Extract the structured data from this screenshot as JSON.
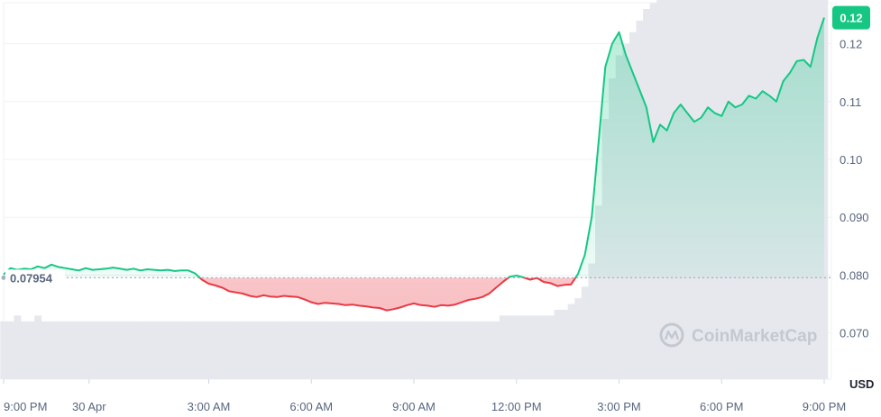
{
  "chart_data": {
    "type": "area",
    "y_axis_position": "right",
    "ylim": [
      0.062,
      0.126
    ],
    "y_ticks": [
      {
        "value": 0.12,
        "label": "0.12"
      },
      {
        "value": 0.11,
        "label": "0.11"
      },
      {
        "value": 0.1,
        "label": "0.10"
      },
      {
        "value": 0.09,
        "label": "0.090"
      },
      {
        "value": 0.08,
        "label": "0.080"
      },
      {
        "value": 0.07,
        "label": "0.070"
      }
    ],
    "x_range_hours": [
      0,
      24
    ],
    "x_ticks": [
      {
        "hour": 0,
        "label": "9:00 PM"
      },
      {
        "hour": 2.5,
        "label": "30 Apr"
      },
      {
        "hour": 6,
        "label": "3:00 AM"
      },
      {
        "hour": 9,
        "label": "6:00 AM"
      },
      {
        "hour": 12,
        "label": "9:00 AM"
      },
      {
        "hour": 15,
        "label": "12:00 PM"
      },
      {
        "hour": 18,
        "label": "3:00 PM"
      },
      {
        "hour": 21,
        "label": "6:00 PM"
      },
      {
        "hour": 24,
        "label": "9:00 PM"
      }
    ],
    "currency_label": "USD",
    "reference_price": 0.07954,
    "reference_label": "0.07954",
    "last_price_label": "0.12",
    "grid": true,
    "colors": {
      "up": "#16c784",
      "down": "#ea3943",
      "badge": "#16c784",
      "volume": "#e6e8ee"
    },
    "series": [
      {
        "x": [
          0,
          0.2,
          0.4,
          0.6,
          0.8,
          1.0,
          1.2,
          1.4,
          1.6,
          1.8,
          2.0,
          2.2,
          2.4,
          2.6,
          2.8,
          3.0,
          3.2,
          3.4,
          3.6,
          3.8,
          4.0,
          4.2,
          4.4,
          4.6,
          4.8,
          5.0,
          5.2,
          5.4,
          5.6,
          5.8,
          6.0,
          6.2,
          6.4,
          6.6,
          6.8,
          7.0,
          7.2,
          7.4,
          7.6,
          7.8,
          8.0,
          8.2,
          8.4,
          8.6,
          8.8,
          9.0,
          9.2,
          9.4,
          9.6,
          9.8,
          10.0,
          10.2,
          10.4,
          10.6,
          10.8,
          11.0,
          11.2,
          11.4,
          11.6,
          11.8,
          12.0,
          12.2,
          12.4,
          12.6,
          12.8,
          13.0,
          13.2,
          13.4,
          13.6,
          13.8,
          14.0,
          14.2,
          14.4,
          14.6,
          14.8,
          15.0,
          15.2,
          15.4,
          15.6,
          15.8,
          16.0,
          16.2,
          16.4,
          16.6,
          16.8,
          17.0,
          17.2,
          17.4,
          17.6,
          17.8,
          18.0,
          18.2,
          18.4,
          18.6,
          18.8,
          19.0,
          19.2,
          19.4,
          19.6,
          19.8,
          20.0,
          20.2,
          20.4,
          20.6,
          20.8,
          21.0,
          21.2,
          21.4,
          21.6,
          21.8,
          22.0,
          22.2,
          22.4,
          22.6,
          22.8,
          23.0,
          23.2,
          23.4,
          23.6,
          23.8,
          24.0
        ],
        "y": [
          0.0801,
          0.0812,
          0.0809,
          0.0811,
          0.081,
          0.0815,
          0.0812,
          0.0818,
          0.0814,
          0.0812,
          0.081,
          0.0808,
          0.0812,
          0.0809,
          0.081,
          0.0811,
          0.0813,
          0.0811,
          0.0809,
          0.0811,
          0.0808,
          0.081,
          0.0809,
          0.0808,
          0.0809,
          0.0807,
          0.0808,
          0.0808,
          0.0803,
          0.0792,
          0.0785,
          0.0782,
          0.0778,
          0.0772,
          0.077,
          0.0768,
          0.0764,
          0.0762,
          0.0765,
          0.0763,
          0.0762,
          0.0764,
          0.0763,
          0.0762,
          0.0758,
          0.0753,
          0.075,
          0.0752,
          0.0751,
          0.075,
          0.0748,
          0.0749,
          0.0747,
          0.0746,
          0.0744,
          0.0743,
          0.0739,
          0.0741,
          0.0744,
          0.0748,
          0.0751,
          0.0748,
          0.0747,
          0.0745,
          0.0748,
          0.0747,
          0.0749,
          0.0753,
          0.0757,
          0.0759,
          0.0762,
          0.0768,
          0.0778,
          0.0788,
          0.0797,
          0.0799,
          0.0796,
          0.0792,
          0.0795,
          0.0788,
          0.0786,
          0.0781,
          0.0783,
          0.0784,
          0.0802,
          0.0835,
          0.09,
          0.103,
          0.116,
          0.12,
          0.122,
          0.118,
          0.115,
          0.112,
          0.109,
          0.103,
          0.106,
          0.105,
          0.108,
          0.1095,
          0.108,
          0.1065,
          0.1072,
          0.109,
          0.108,
          0.1075,
          0.11,
          0.109,
          0.1095,
          0.111,
          0.1105,
          0.1118,
          0.111,
          0.11,
          0.1135,
          0.115,
          0.117,
          0.1172,
          0.116,
          0.121,
          0.1245
        ],
        "volume": [
          0.01,
          0.01,
          0.011,
          0.01,
          0.01,
          0.011,
          0.01,
          0.01,
          0.01,
          0.01,
          0.01,
          0.01,
          0.01,
          0.01,
          0.01,
          0.01,
          0.01,
          0.01,
          0.01,
          0.01,
          0.01,
          0.01,
          0.01,
          0.01,
          0.01,
          0.01,
          0.01,
          0.01,
          0.01,
          0.01,
          0.01,
          0.01,
          0.01,
          0.01,
          0.01,
          0.01,
          0.01,
          0.01,
          0.01,
          0.01,
          0.01,
          0.01,
          0.01,
          0.01,
          0.01,
          0.01,
          0.01,
          0.01,
          0.01,
          0.01,
          0.01,
          0.01,
          0.01,
          0.01,
          0.01,
          0.01,
          0.01,
          0.01,
          0.01,
          0.01,
          0.01,
          0.01,
          0.01,
          0.01,
          0.01,
          0.01,
          0.01,
          0.01,
          0.01,
          0.01,
          0.01,
          0.01,
          0.01,
          0.011,
          0.011,
          0.011,
          0.011,
          0.011,
          0.011,
          0.011,
          0.011,
          0.012,
          0.012,
          0.013,
          0.014,
          0.016,
          0.02,
          0.03,
          0.045,
          0.052,
          0.056,
          0.058,
          0.06,
          0.062,
          0.064,
          0.065,
          0.066,
          0.067,
          0.068,
          0.069,
          0.07,
          0.07,
          0.071,
          0.071,
          0.072,
          0.072,
          0.073,
          0.073,
          0.073,
          0.074,
          0.074,
          0.074,
          0.075,
          0.075,
          0.075,
          0.076,
          0.076,
          0.076,
          0.077,
          0.077,
          0.078
        ]
      }
    ]
  },
  "watermark": {
    "text": "CoinMarketCap",
    "icon": "coinmarketcap-logo-icon"
  }
}
